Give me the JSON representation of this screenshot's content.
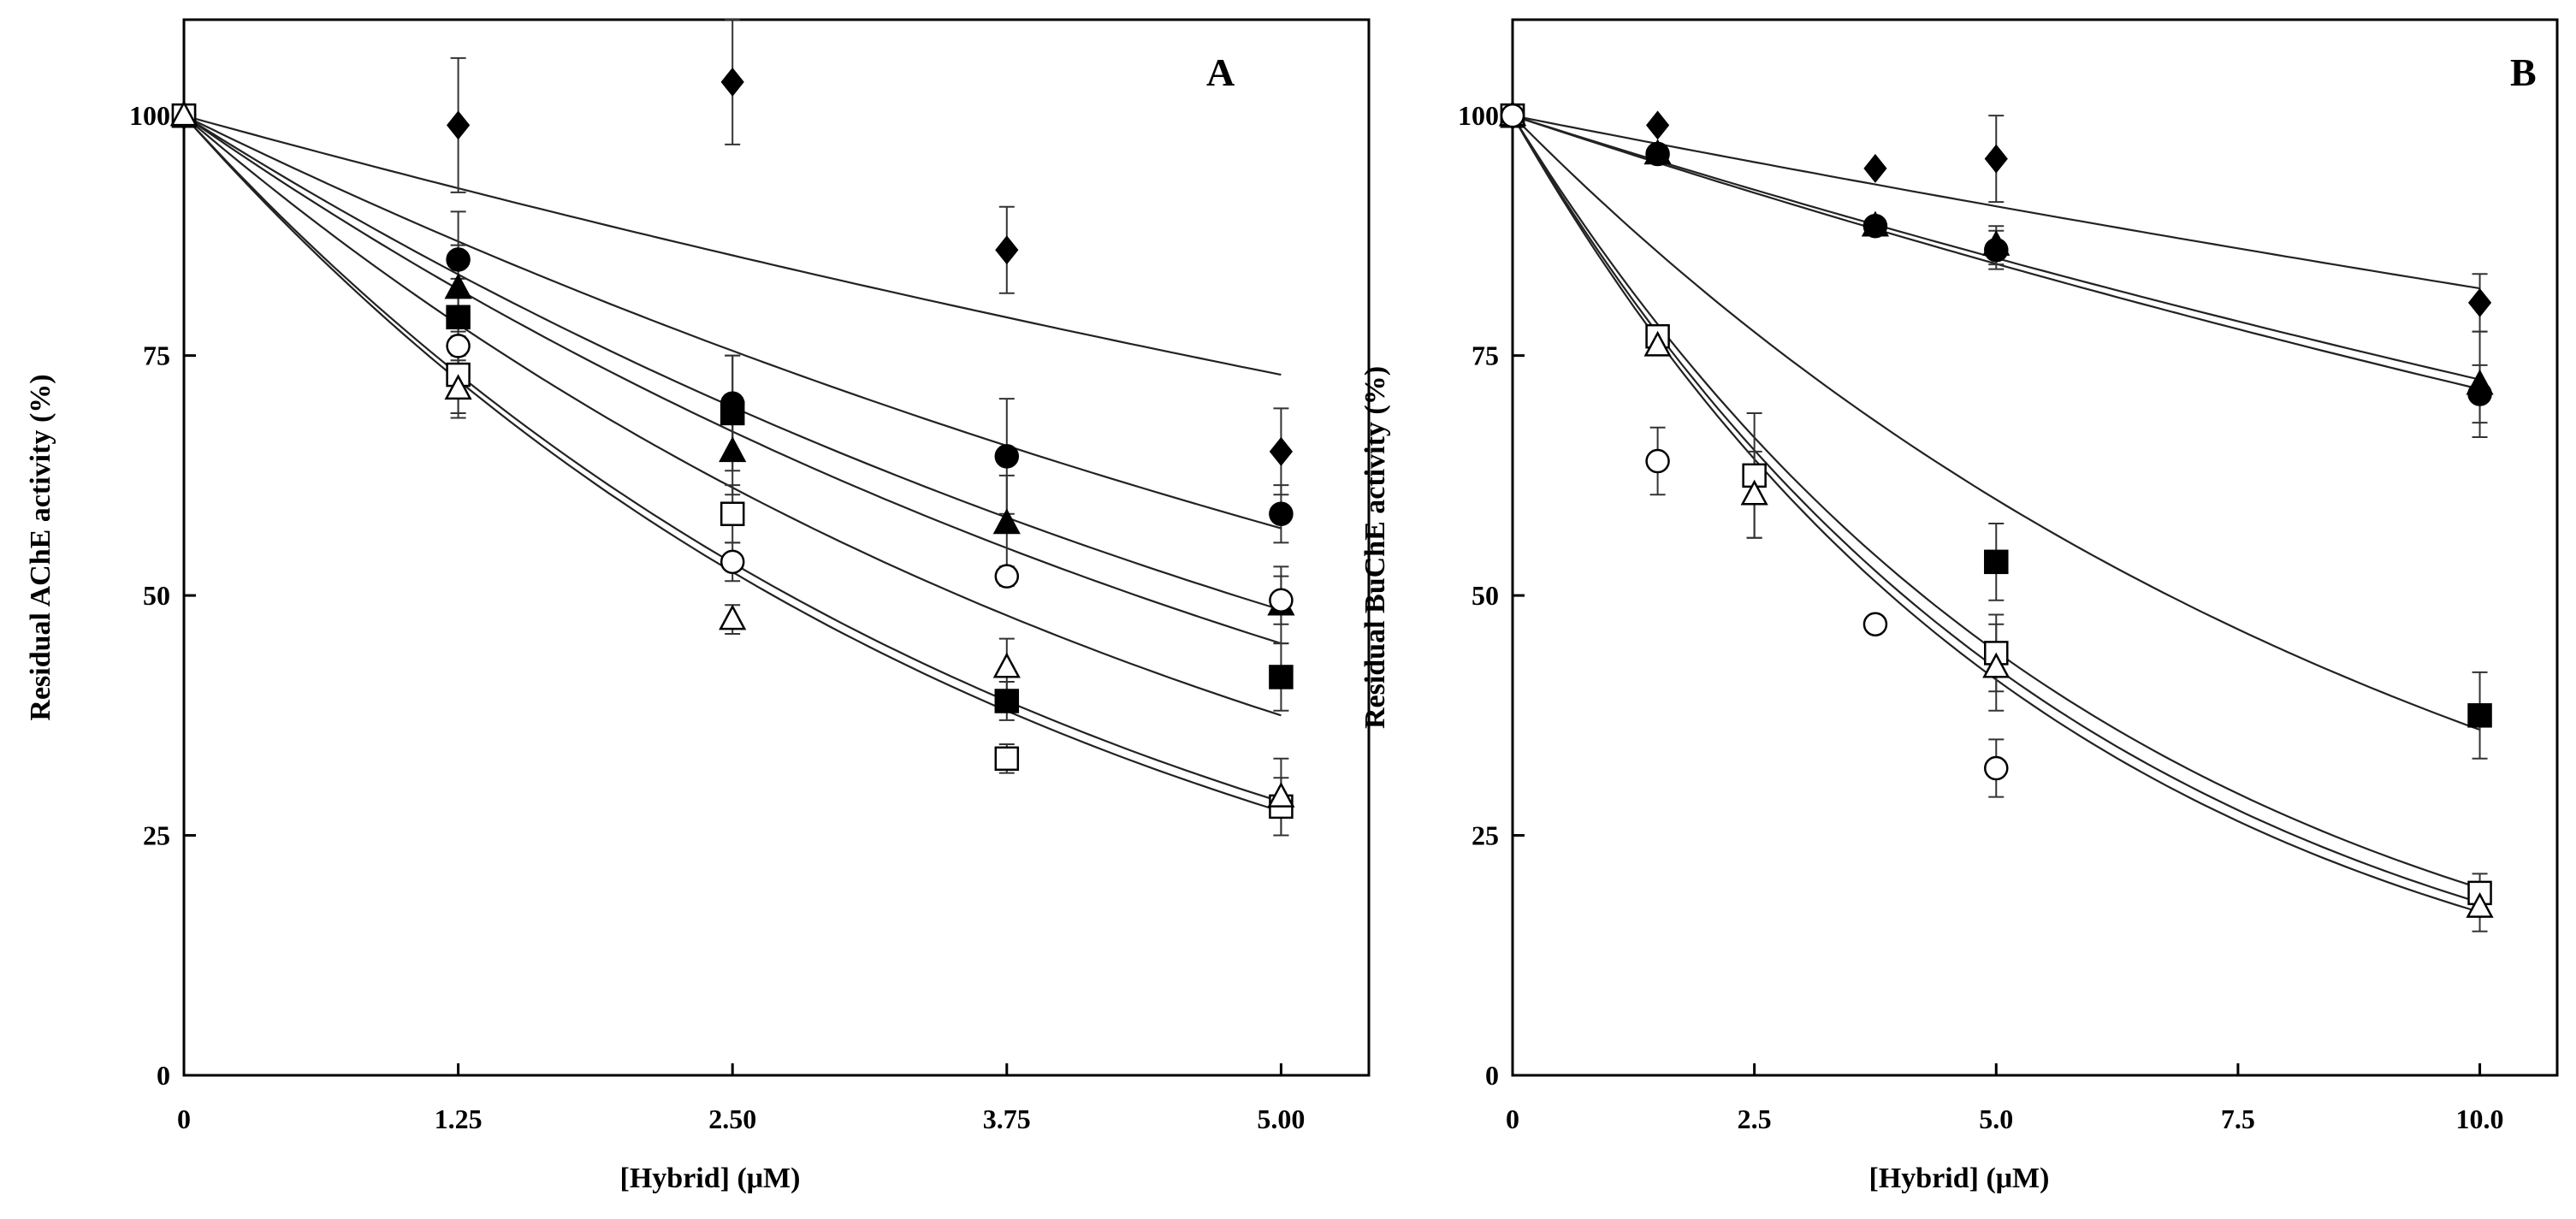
{
  "figure": {
    "panels": [
      "A",
      "B"
    ]
  },
  "chart_data": [
    {
      "type": "scatter",
      "panel_label": "A",
      "xlabel": "[Hybrid] (μM)",
      "ylabel": "Residual AChE activity (%)",
      "xlim": [
        0,
        5.4
      ],
      "ylim": [
        0,
        110
      ],
      "xticks": [
        0,
        1.25,
        2.5,
        3.75,
        5.0
      ],
      "xtick_labels": [
        "0",
        "1.25",
        "2.50",
        "3.75",
        "5.00"
      ],
      "yticks": [
        0,
        25,
        50,
        75,
        100
      ],
      "ytick_labels": [
        "0",
        "25",
        "50",
        "75",
        "100"
      ],
      "grid": false,
      "legend": "none",
      "fit": "exponential decay",
      "series": [
        {
          "marker": "diamond-filled",
          "x": [
            0,
            1.25,
            2.5,
            3.75,
            5.0
          ],
          "y": [
            100,
            99,
            103.5,
            86,
            65
          ],
          "err": [
            0,
            7,
            6.5,
            4.5,
            4.5
          ],
          "fit_end": 73
        },
        {
          "marker": "circle-filled",
          "x": [
            0,
            1.25,
            2.5,
            3.75,
            5.0
          ],
          "y": [
            100,
            85,
            70,
            64.5,
            58.5
          ],
          "err": [
            0,
            5,
            5,
            6,
            3
          ],
          "fit_end": 57
        },
        {
          "marker": "triangle-filled",
          "x": [
            0,
            1.25,
            2.5,
            3.75,
            5.0
          ],
          "y": [
            100,
            82,
            65,
            57.5,
            49
          ],
          "err": [
            0,
            4.5,
            4.5,
            5,
            4
          ],
          "fit_end": 48.5
        },
        {
          "marker": "circle-open",
          "x": [
            0,
            1.25,
            2.5,
            3.75,
            5.0
          ],
          "y": [
            100,
            76,
            53.5,
            52,
            49.5
          ],
          "err": [
            0,
            4,
            2,
            1,
            2.5
          ],
          "fit_end": 45
        },
        {
          "marker": "square-filled",
          "x": [
            0,
            1.25,
            2.5,
            3.75,
            5.0
          ],
          "y": [
            100,
            79,
            69,
            39,
            41.5
          ],
          "err": [
            0,
            4,
            6,
            2,
            3.5
          ],
          "fit_end": 37.5
        },
        {
          "marker": "square-open",
          "x": [
            0,
            1.25,
            2.5,
            3.75,
            5.0
          ],
          "y": [
            100,
            73,
            58.5,
            33,
            28
          ],
          "err": [
            0,
            4,
            3,
            1.5,
            3
          ],
          "fit_end": 27.5
        },
        {
          "marker": "triangle-open",
          "x": [
            0,
            1.25,
            2.5,
            3.75,
            5.0
          ],
          "y": [
            100,
            71.5,
            47.5,
            42.5,
            29
          ],
          "err": [
            0,
            3,
            1.5,
            3,
            4
          ],
          "fit_end": 28.5
        }
      ]
    },
    {
      "type": "scatter",
      "panel_label": "B",
      "xlabel": "[Hybrid] (μM)",
      "ylabel": "Residual BuChE activity (%)",
      "xlim": [
        0,
        10.8
      ],
      "ylim": [
        0,
        110
      ],
      "xticks": [
        0,
        2.5,
        5.0,
        7.5,
        10.0
      ],
      "xtick_labels": [
        "0",
        "2.5",
        "5.0",
        "7.5",
        "10.0"
      ],
      "yticks": [
        0,
        25,
        50,
        75,
        100
      ],
      "ytick_labels": [
        "0",
        "25",
        "50",
        "75",
        "100"
      ],
      "grid": false,
      "legend": "none",
      "fit": "exponential decay",
      "series": [
        {
          "marker": "diamond-filled",
          "x": [
            0,
            1.5,
            3.75,
            5.0,
            10.0
          ],
          "y": [
            100,
            99,
            94.5,
            95.5,
            80.5
          ],
          "err": [
            0,
            0,
            0,
            4.5,
            3
          ],
          "fit_end": 82
        },
        {
          "marker": "triangle-filled",
          "x": [
            0,
            1.5,
            3.75,
            5.0,
            10.0
          ],
          "y": [
            100,
            96,
            88.5,
            86.5,
            72
          ],
          "err": [
            0,
            0,
            0,
            2,
            5.5
          ],
          "fit_end": 72.5
        },
        {
          "marker": "circle-filled",
          "x": [
            0,
            1.5,
            3.75,
            5.0,
            10.0
          ],
          "y": [
            100,
            96,
            88.5,
            86,
            71
          ],
          "err": [
            0,
            0,
            0,
            2,
            3
          ],
          "fit_end": 71.5
        },
        {
          "marker": "square-filled",
          "x": [
            0,
            5.0,
            10.0
          ],
          "y": [
            100,
            53.5,
            37.5
          ],
          "err": [
            0,
            4,
            4.5
          ],
          "fit_end": 36
        },
        {
          "marker": "square-open",
          "x": [
            0,
            1.5,
            2.5,
            5.0,
            10.0
          ],
          "y": [
            100,
            77,
            62.5,
            44,
            19
          ],
          "err": [
            0,
            0,
            6.5,
            4,
            2
          ],
          "fit_end": 19.5
        },
        {
          "marker": "triangle-open",
          "x": [
            0,
            1.5,
            2.5,
            5.0,
            10.0
          ],
          "y": [
            100,
            76,
            60.5,
            42.5,
            17.5
          ],
          "err": [
            0,
            0,
            4.5,
            4.5,
            2.5
          ],
          "fit_end": 18
        },
        {
          "marker": "circle-open",
          "x": [
            0,
            1.5,
            3.75,
            5.0
          ],
          "y": [
            100,
            64,
            47,
            32
          ],
          "err": [
            0,
            3.5,
            0,
            3
          ],
          "fit_end": 17
        }
      ]
    }
  ]
}
